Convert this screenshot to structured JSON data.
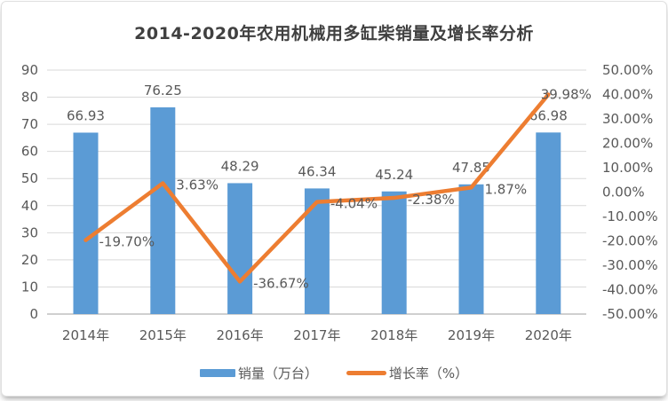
{
  "title": "2014-2020年农用机械用多缸柴销量及增长率分析",
  "colors": {
    "bar": "#5B9BD5",
    "line": "#ED7D31",
    "grid": "#D9D9D9",
    "zero_axis": "#BFBFBF",
    "text": "#595959",
    "title_text": "#404040"
  },
  "chart_data": {
    "type": "combo-bar-line",
    "title": "2014-2020年农用机械用多缸柴销量及增长率分析",
    "categories": [
      "2014年",
      "2015年",
      "2016年",
      "2017年",
      "2018年",
      "2019年",
      "2020年"
    ],
    "series": [
      {
        "name": "销量（万台）",
        "type": "bar",
        "axis": "left",
        "color": "#5B9BD5",
        "values": [
          66.93,
          76.25,
          48.29,
          46.34,
          45.24,
          47.85,
          66.98
        ],
        "labels": [
          "66.93",
          "76.25",
          "48.29",
          "46.34",
          "45.24",
          "47.85",
          "66.98"
        ]
      },
      {
        "name": "增长率（%）",
        "type": "line",
        "axis": "right",
        "color": "#ED7D31",
        "values": [
          -19.7,
          3.63,
          -36.67,
          -4.04,
          -2.38,
          1.87,
          39.98
        ],
        "labels": [
          "-19.70%",
          "3.63%",
          "-36.67%",
          "-4.04%",
          "-2.38%",
          "1.87%",
          "39.98%"
        ]
      }
    ],
    "left_axis": {
      "min": 0,
      "max": 90,
      "step": 10,
      "ticks": [
        "0",
        "10",
        "20",
        "30",
        "40",
        "50",
        "60",
        "70",
        "80",
        "90"
      ]
    },
    "right_axis": {
      "min": -50,
      "max": 50,
      "step": 10,
      "ticks": [
        "-50.00%",
        "-40.00%",
        "-30.00%",
        "-20.00%",
        "-10.00%",
        "0.00%",
        "10.00%",
        "20.00%",
        "30.00%",
        "40.00%",
        "50.00%"
      ]
    },
    "grid": true,
    "legend_position": "bottom"
  },
  "legend": {
    "items": [
      {
        "label": "销量（万台）",
        "marker": "rect",
        "color": "#5B9BD5"
      },
      {
        "label": "增长率（%）",
        "marker": "line",
        "color": "#ED7D31"
      }
    ]
  }
}
